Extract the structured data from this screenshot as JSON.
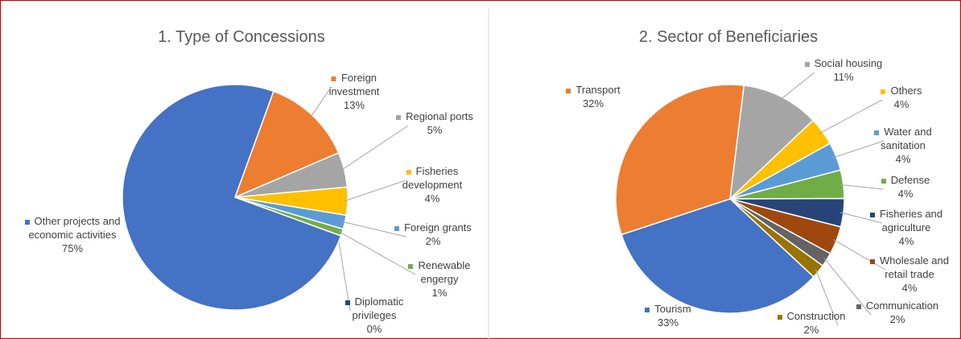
{
  "chart_data": [
    {
      "type": "pie",
      "title": "1. Type of Concessions",
      "categories": [
        "Foreign investment",
        "Regional ports",
        "Fisheries development",
        "Foreign grants",
        "Renewable engergy",
        "Diplomatic privileges",
        "Other projects and economic activities"
      ],
      "values": [
        13,
        5,
        4,
        2,
        1,
        0,
        75
      ],
      "value_labels": [
        "13%",
        "5%",
        "4%",
        "2%",
        "1%",
        "0%",
        "75%"
      ],
      "colors": [
        "#ed7d31",
        "#a5a5a5",
        "#ffc000",
        "#5b9bd5",
        "#70ad47",
        "#264478",
        "#4472c4"
      ]
    },
    {
      "type": "pie",
      "title": "2. Sector of Beneficiaries",
      "categories": [
        "Social housing",
        "Others",
        "Water and sanitation",
        "Defense",
        "Fisheries and agriculture",
        "Wholesale and retail trade",
        "Communication",
        "Construction",
        "Tourism",
        "Transport"
      ],
      "values": [
        11,
        4,
        4,
        4,
        4,
        4,
        2,
        2,
        33,
        32
      ],
      "value_labels": [
        "11%",
        "4%",
        "4%",
        "4%",
        "4%",
        "4%",
        "2%",
        "2%",
        "33%",
        "32%"
      ],
      "colors": [
        "#a5a5a5",
        "#ffc000",
        "#5b9bd5",
        "#70ad47",
        "#264478",
        "#9e480e",
        "#636363",
        "#997300",
        "#4472c4",
        "#ed7d31"
      ]
    }
  ]
}
